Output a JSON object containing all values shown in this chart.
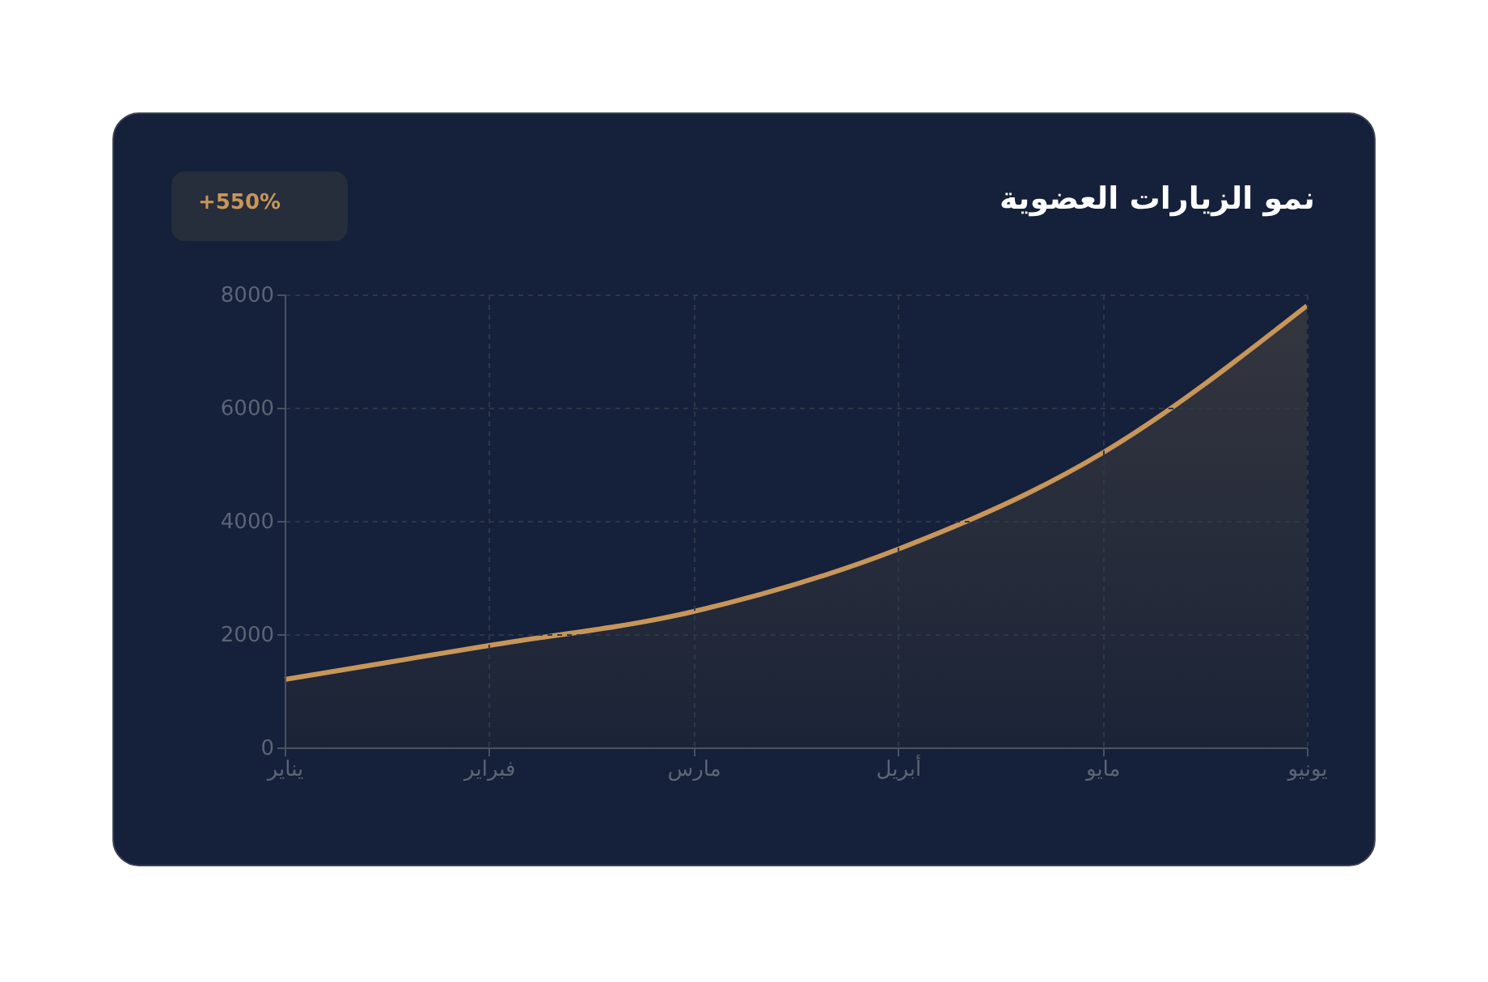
{
  "chart_data": {
    "type": "area",
    "title": "نمو الزيارات العضوية",
    "categories": [
      "يناير",
      "فبراير",
      "مارس",
      "أبريل",
      "مايو",
      "يونيو"
    ],
    "series": [
      {
        "color": "#c8965a",
        "values": [
          1200,
          1800,
          2400,
          3500,
          5200,
          7800
        ]
      }
    ],
    "ylim": [
      0,
      8000
    ],
    "yticks": [
      0,
      2000,
      4000,
      6000,
      8000
    ],
    "grid": true,
    "annotations": [
      "+550%"
    ]
  }
}
